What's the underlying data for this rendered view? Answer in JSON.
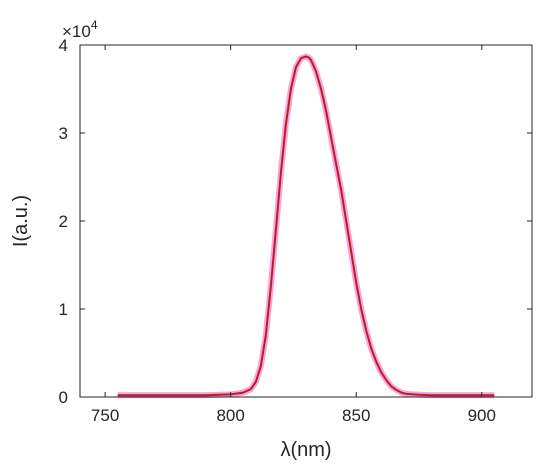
{
  "chart_data": {
    "type": "line",
    "xlabel": "λ(nm)",
    "ylabel": "I(a.u.)",
    "y_exponent_label": "×10",
    "y_exponent_power": "4",
    "xlim": [
      740,
      920
    ],
    "ylim": [
      0,
      40000
    ],
    "x_ticks": [
      750,
      800,
      850,
      900
    ],
    "x_tick_labels": [
      "750",
      "800",
      "850",
      "900"
    ],
    "y_ticks": [
      0,
      10000,
      20000,
      30000,
      40000
    ],
    "y_tick_labels": [
      "0",
      "1",
      "2",
      "3",
      "4"
    ],
    "grid": false,
    "colors": {
      "line": "#b22222",
      "halo": "#ff8fd8",
      "axis": "#262626"
    },
    "series": [
      {
        "x": [
          755,
          790,
          800,
          805,
          808,
          810,
          812,
          814,
          816,
          818,
          820,
          822,
          824,
          826,
          828,
          830,
          831,
          832,
          834,
          836,
          838,
          840,
          842,
          844,
          846,
          848,
          850,
          852,
          854,
          856,
          858,
          860,
          862,
          864,
          866,
          868,
          870,
          875,
          880,
          890,
          905
        ],
        "y": [
          200,
          200,
          300,
          500,
          900,
          1700,
          3500,
          7000,
          12500,
          19000,
          25500,
          31000,
          35000,
          37500,
          38500,
          38700,
          38600,
          38300,
          37000,
          35000,
          32500,
          29500,
          26500,
          23500,
          20000,
          16500,
          13000,
          10000,
          7500,
          5500,
          4000,
          2800,
          1900,
          1200,
          800,
          500,
          350,
          250,
          200,
          200,
          200
        ]
      }
    ]
  }
}
